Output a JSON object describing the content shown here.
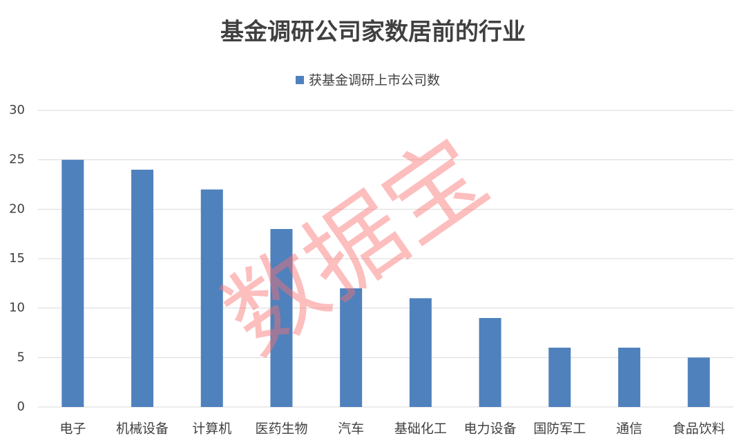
{
  "chart_data": {
    "type": "bar",
    "title": "基金调研公司家数居前的行业",
    "categories": [
      "电子",
      "机械设备",
      "计算机",
      "医药生物",
      "汽车",
      "基础化工",
      "电力设备",
      "国防军工",
      "通信",
      "食品饮料"
    ],
    "series": [
      {
        "name": "获基金调研上市公司数",
        "color": "#4f81bd",
        "values": [
          25,
          24,
          22,
          18,
          12,
          11,
          9,
          6,
          6,
          5
        ]
      }
    ],
    "ylim": [
      0,
      30
    ],
    "yticks": [
      0,
      5,
      10,
      15,
      20,
      25,
      30
    ],
    "grid": true,
    "legend": "top",
    "watermark": "数据宝"
  }
}
